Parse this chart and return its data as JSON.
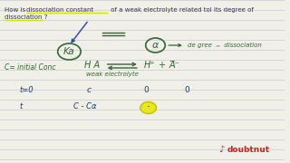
{
  "bg_color": "#f0f0e8",
  "line_color": "#c8c8d8",
  "title_text_color": "#333355",
  "highlight_underline_color": "#dddd00",
  "arrow_color": "#2244aa",
  "ka_circle_color": "#336633",
  "alpha_circle_color": "#336633",
  "chem_color": "#1a3a6a",
  "green_chem_color": "#336633",
  "ka_text": "Ka",
  "alpha_text": "α",
  "c_initial": "C= initial Conc",
  "weak_electrolyte": "weak electrolyte",
  "t0_label": "t=0",
  "t_label": "t",
  "highlight_circle_color": "#e8e820",
  "highlight_circle_edge": "#c0c000",
  "doubtnut_red": "#cc2222",
  "title_q": "How is dissociation constant of a weak electrolyte related tol its degree of\ndissociation ?",
  "degree_of_text": "de gree  ₘ  dissociation"
}
